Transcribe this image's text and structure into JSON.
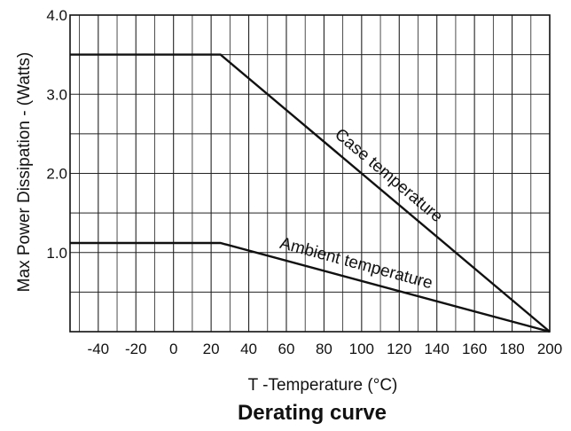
{
  "chart_data": {
    "type": "line",
    "title": "Derating curve",
    "xlabel": "T -Temperature (°C)",
    "ylabel": "Max Power Dissipation - (Watts)",
    "xlim": [
      -55,
      200
    ],
    "ylim": [
      0,
      4.0
    ],
    "x_ticks": [
      -40,
      -20,
      0,
      20,
      40,
      60,
      80,
      100,
      120,
      140,
      160,
      180,
      200
    ],
    "y_ticks": [
      1.0,
      2.0,
      3.0,
      4.0
    ],
    "y_tick_labels": [
      "1.0",
      "2.0",
      "3.0",
      "4.0"
    ],
    "grid": true,
    "series": [
      {
        "name": "Case temperature",
        "points": [
          [
            -55,
            3.5
          ],
          [
            25,
            3.5
          ],
          [
            200,
            0
          ]
        ]
      },
      {
        "name": "Ambient temperature",
        "points": [
          [
            -55,
            1.12
          ],
          [
            25,
            1.12
          ],
          [
            200,
            0
          ]
        ]
      }
    ],
    "colors": {
      "line": "#111111",
      "grid": "#222222",
      "background": "#ffffff"
    }
  }
}
